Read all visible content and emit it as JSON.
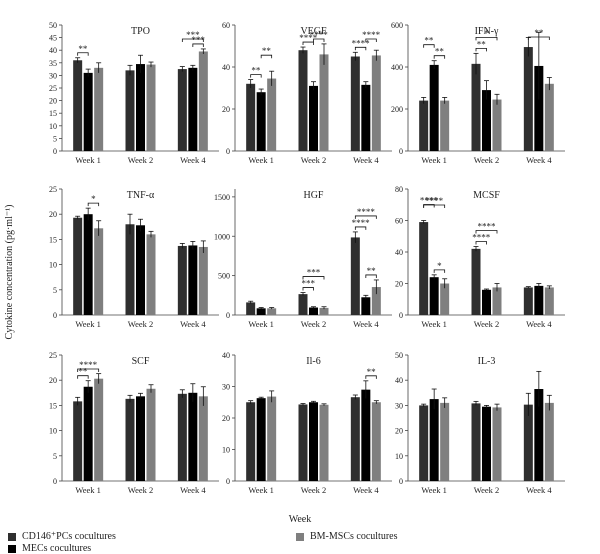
{
  "figure": {
    "ylabel": "Cytokine concentration (pg·ml⁻¹)",
    "xlabel": "Week"
  },
  "legend": [
    {
      "label": "CD146⁺PCs cocultures",
      "color": "#2f2f2f"
    },
    {
      "label": "MECs cocultures",
      "color": "#000000"
    },
    {
      "label": "BM-MSCs cocultures",
      "color": "#7f7f7f"
    }
  ],
  "chart_data": [
    {
      "type": "bar",
      "title": "TPO",
      "categories": [
        "Week 1",
        "Week 2",
        "Week 4"
      ],
      "ylim": [
        0,
        50
      ],
      "yticks": [
        0,
        5,
        10,
        15,
        20,
        25,
        30,
        35,
        40,
        45,
        50
      ],
      "series": [
        {
          "name": "CD146⁺PCs cocultures",
          "values": [
            36,
            32,
            32.5
          ],
          "err": [
            1,
            2,
            1
          ]
        },
        {
          "name": "MECs cocultures",
          "values": [
            31,
            34.5,
            33
          ],
          "err": [
            1.5,
            3.5,
            1
          ]
        },
        {
          "name": "BM-MSCs cocultures",
          "values": [
            33,
            34.3,
            39.5
          ],
          "err": [
            2,
            1,
            1
          ]
        }
      ],
      "sig": [
        {
          "week": 0,
          "a": 0,
          "b": 1,
          "label": "**",
          "level": 0
        },
        {
          "week": 2,
          "a": 0,
          "b": 2,
          "label": "***",
          "level": 1
        },
        {
          "week": 2,
          "a": 1,
          "b": 2,
          "label": "***",
          "level": 0
        }
      ]
    },
    {
      "type": "bar",
      "title": "VEGF",
      "categories": [
        "Week 1",
        "Week 2",
        "Week 4"
      ],
      "ylim": [
        0,
        60
      ],
      "yticks": [
        0,
        20,
        40,
        60
      ],
      "series": [
        {
          "name": "CD146⁺PCs cocultures",
          "values": [
            32,
            48,
            45
          ],
          "err": [
            2,
            1.5,
            2
          ]
        },
        {
          "name": "MECs cocultures",
          "values": [
            28,
            31,
            31.5
          ],
          "err": [
            1.5,
            2,
            1.5
          ]
        },
        {
          "name": "BM-MSCs cocultures",
          "values": [
            34.5,
            46,
            45.5
          ],
          "err": [
            3.5,
            5,
            2.5
          ]
        }
      ],
      "sig": [
        {
          "week": 0,
          "a": 0,
          "b": 1,
          "label": "**",
          "level": 0
        },
        {
          "week": 0,
          "a": 1,
          "b": 2,
          "label": "**",
          "level": 1
        },
        {
          "week": 1,
          "a": 0,
          "b": 1,
          "label": "****",
          "level": 0
        },
        {
          "week": 1,
          "a": 1,
          "b": 2,
          "label": "****",
          "level": 1
        },
        {
          "week": 2,
          "a": 0,
          "b": 1,
          "label": "****",
          "level": 0
        },
        {
          "week": 2,
          "a": 1,
          "b": 2,
          "label": "****",
          "level": 1
        }
      ]
    },
    {
      "type": "bar",
      "title": "IFN-γ",
      "categories": [
        "Week 1",
        "Week 2",
        "Week 4"
      ],
      "ylim": [
        0,
        600
      ],
      "yticks": [
        0,
        200,
        400,
        600
      ],
      "series": [
        {
          "name": "CD146⁺PCs cocultures",
          "values": [
            240,
            415,
            495
          ],
          "err": [
            15,
            50,
            45
          ]
        },
        {
          "name": "MECs cocultures",
          "values": [
            410,
            290,
            405
          ],
          "err": [
            20,
            45,
            160
          ]
        },
        {
          "name": "BM-MSCs cocultures",
          "values": [
            240,
            245,
            320
          ],
          "err": [
            15,
            25,
            30
          ]
        }
      ],
      "sig": [
        {
          "week": 0,
          "a": 0,
          "b": 1,
          "label": "**",
          "level": 1
        },
        {
          "week": 0,
          "a": 1,
          "b": 2,
          "label": "**",
          "level": 0
        },
        {
          "week": 1,
          "a": 0,
          "b": 1,
          "label": "**",
          "level": 0
        },
        {
          "week": 1,
          "a": 0,
          "b": 2,
          "label": "*",
          "level": 1
        },
        {
          "week": 2,
          "a": 0,
          "b": 2,
          "label": "**",
          "level": 0
        }
      ]
    },
    {
      "type": "bar",
      "title": "TNF-α",
      "categories": [
        "Week 1",
        "Week 2",
        "Week 4"
      ],
      "ylim": [
        0,
        25
      ],
      "yticks": [
        0,
        5,
        10,
        15,
        20,
        25
      ],
      "series": [
        {
          "name": "CD146⁺PCs cocultures",
          "values": [
            19.3,
            18,
            13.7
          ],
          "err": [
            0.3,
            2,
            0.5
          ]
        },
        {
          "name": "MECs cocultures",
          "values": [
            20,
            17.8,
            13.8
          ],
          "err": [
            1.2,
            1.2,
            0.8
          ]
        },
        {
          "name": "BM-MSCs cocultures",
          "values": [
            17.2,
            16,
            13.5
          ],
          "err": [
            1.5,
            0.6,
            1.2
          ]
        }
      ],
      "sig": [
        {
          "week": 0,
          "a": 1,
          "b": 2,
          "label": "*",
          "level": 0
        }
      ]
    },
    {
      "type": "bar",
      "title": "HGF",
      "categories": [
        "Week 1",
        "Week 2",
        "Week 4"
      ],
      "ylim": [
        0,
        1600
      ],
      "yticks": [
        0,
        500,
        1000,
        1500
      ],
      "series": [
        {
          "name": "CD146⁺PCs cocultures",
          "values": [
            160,
            265,
            985
          ],
          "err": [
            15,
            20,
            70
          ]
        },
        {
          "name": "MECs cocultures",
          "values": [
            85,
            95,
            225
          ],
          "err": [
            10,
            10,
            25
          ]
        },
        {
          "name": "BM-MSCs cocultures",
          "values": [
            85,
            90,
            355
          ],
          "err": [
            10,
            15,
            90
          ]
        }
      ],
      "sig": [
        {
          "week": 1,
          "a": 0,
          "b": 1,
          "label": "***",
          "level": 0
        },
        {
          "week": 1,
          "a": 0,
          "b": 2,
          "label": "***",
          "level": 1
        },
        {
          "week": 2,
          "a": 0,
          "b": 1,
          "label": "****",
          "level": 0
        },
        {
          "week": 2,
          "a": 0,
          "b": 2,
          "label": "****",
          "level": 1
        },
        {
          "week": 2,
          "a": 1,
          "b": 2,
          "label": "**",
          "level": 0
        }
      ]
    },
    {
      "type": "bar",
      "title": "MCSF",
      "categories": [
        "Week 1",
        "Week 2",
        "Week 4"
      ],
      "ylim": [
        0,
        80
      ],
      "yticks": [
        0,
        20,
        40,
        60,
        80
      ],
      "series": [
        {
          "name": "CD146⁺PCs cocultures",
          "values": [
            59,
            42,
            17.5
          ],
          "err": [
            1,
            1.5,
            0.5
          ]
        },
        {
          "name": "MECs cocultures",
          "values": [
            24,
            16,
            18.5
          ],
          "err": [
            1.5,
            0.5,
            1.5
          ]
        },
        {
          "name": "BM-MSCs cocultures",
          "values": [
            20,
            17.5,
            17.5
          ],
          "err": [
            3,
            2.5,
            1
          ]
        }
      ],
      "sig": [
        {
          "week": 0,
          "a": 1,
          "b": 2,
          "label": "*",
          "level": 0
        },
        {
          "week": 0,
          "a": 0,
          "b": 1,
          "label": "****",
          "level": 1
        },
        {
          "week": 0,
          "a": 0,
          "b": 2,
          "label": "****",
          "level": 2
        },
        {
          "week": 1,
          "a": 0,
          "b": 1,
          "label": "****",
          "level": 0
        },
        {
          "week": 1,
          "a": 0,
          "b": 2,
          "label": "****",
          "level": 1
        }
      ]
    },
    {
      "type": "bar",
      "title": "SCF",
      "categories": [
        "Week 1",
        "Week 2",
        "Week 4"
      ],
      "ylim": [
        0,
        25
      ],
      "yticks": [
        0,
        5,
        10,
        15,
        20,
        25
      ],
      "series": [
        {
          "name": "CD146⁺PCs cocultures",
          "values": [
            15.8,
            16.3,
            17.3
          ],
          "err": [
            0.8,
            0.7,
            0.8
          ]
        },
        {
          "name": "MECs cocultures",
          "values": [
            18.7,
            16.8,
            17.5
          ],
          "err": [
            1.2,
            0.6,
            1.8
          ]
        },
        {
          "name": "BM-MSCs cocultures",
          "values": [
            20.3,
            18.3,
            16.8
          ],
          "err": [
            1,
            0.8,
            1.9
          ]
        }
      ],
      "sig": [
        {
          "week": 0,
          "a": 0,
          "b": 1,
          "label": "**",
          "level": 0
        },
        {
          "week": 0,
          "a": 0,
          "b": 2,
          "label": "****",
          "level": 1
        }
      ]
    },
    {
      "type": "bar",
      "title": "Il-6",
      "categories": [
        "Week 1",
        "Week 2",
        "Week 4"
      ],
      "ylim": [
        0,
        40
      ],
      "yticks": [
        0,
        10,
        20,
        30,
        40
      ],
      "series": [
        {
          "name": "CD146⁺PCs cocultures",
          "values": [
            25,
            24.3,
            26.6
          ],
          "err": [
            0.5,
            0.3,
            0.7
          ]
        },
        {
          "name": "MECs cocultures",
          "values": [
            26.3,
            25,
            29
          ],
          "err": [
            0.3,
            0.3,
            2.8
          ]
        },
        {
          "name": "BM-MSCs cocultures",
          "values": [
            26.8,
            24.2,
            25
          ],
          "err": [
            1.8,
            0.3,
            0.5
          ]
        }
      ],
      "sig": [
        {
          "week": 2,
          "a": 1,
          "b": 2,
          "label": "**",
          "level": 0
        }
      ]
    },
    {
      "type": "bar",
      "title": "IL-3",
      "categories": [
        "Week 1",
        "Week 2",
        "Week 4"
      ],
      "ylim": [
        0,
        50
      ],
      "yticks": [
        0,
        10,
        20,
        30,
        40,
        50
      ],
      "series": [
        {
          "name": "CD146⁺PCs cocultures",
          "values": [
            30,
            30.8,
            30.3
          ],
          "err": [
            0.5,
            0.8,
            4.5
          ]
        },
        {
          "name": "MECs cocultures",
          "values": [
            32.5,
            29.5,
            36.5
          ],
          "err": [
            4,
            0.5,
            7
          ]
        },
        {
          "name": "BM-MSCs cocultures",
          "values": [
            31,
            29.2,
            31
          ],
          "err": [
            2,
            1.3,
            3
          ]
        }
      ],
      "sig": []
    }
  ]
}
